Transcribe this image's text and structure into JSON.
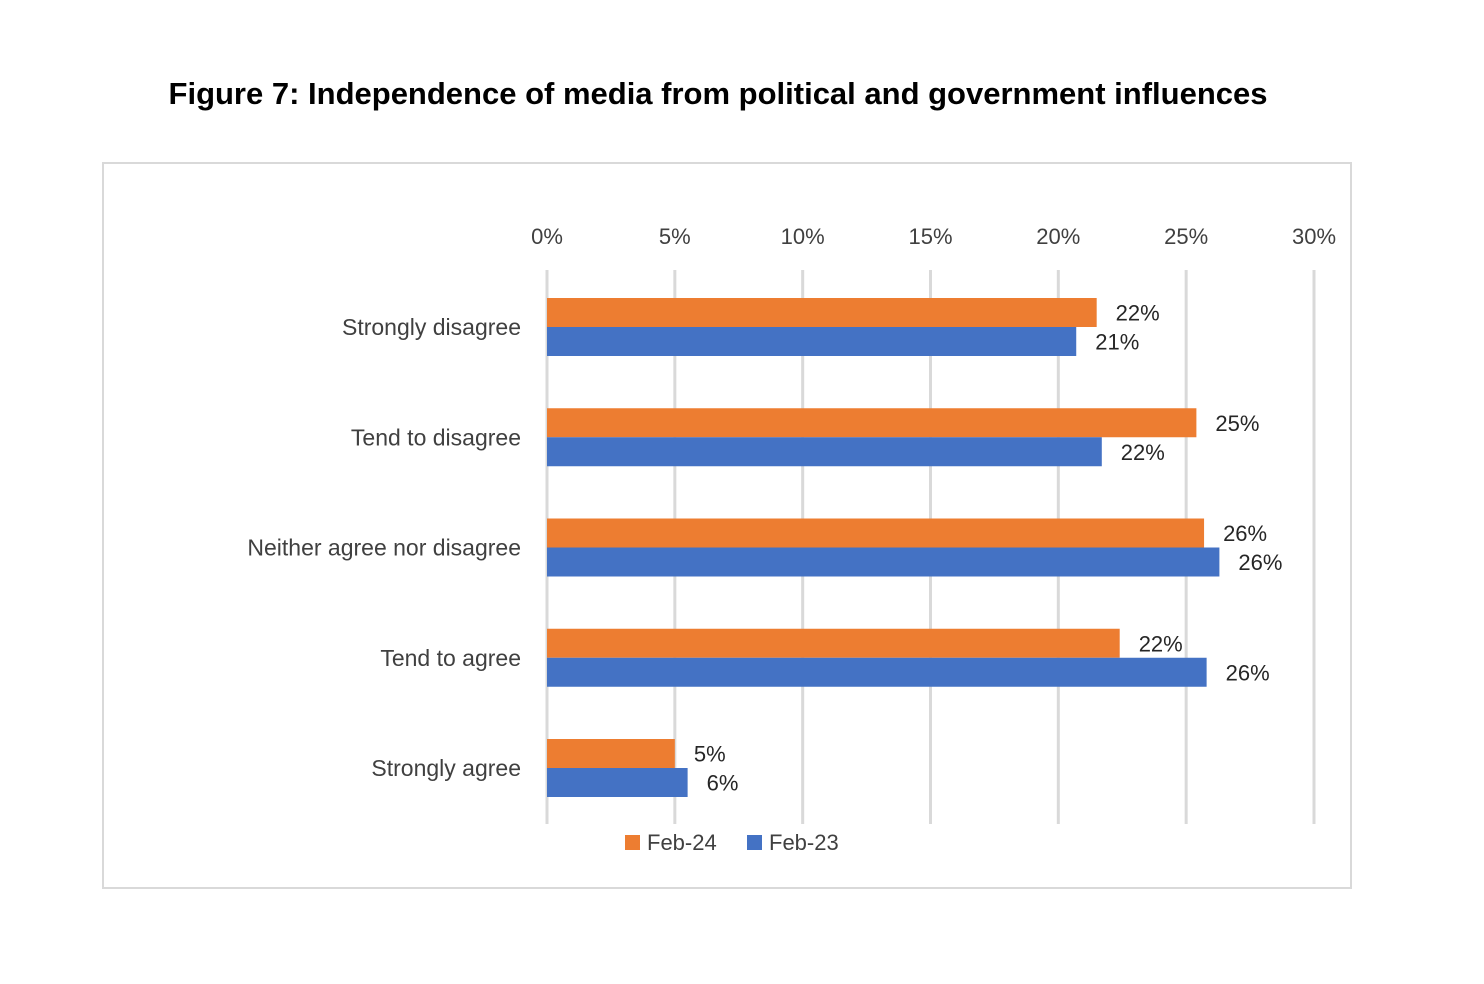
{
  "chart_data": {
    "type": "bar",
    "orientation": "horizontal",
    "title": "Figure 7: Independence of media from political and government influences",
    "categories": [
      "Strongly disagree",
      "Tend to disagree",
      "Neither agree nor disagree",
      "Tend to agree",
      "Strongly agree"
    ],
    "series": [
      {
        "name": "Feb-24",
        "color": "#ed7d31",
        "values": [
          21.5,
          25.4,
          25.7,
          22.4,
          5.0
        ],
        "labels": [
          "22%",
          "25%",
          "26%",
          "22%",
          "5%"
        ]
      },
      {
        "name": "Feb-23",
        "color": "#4472c4",
        "values": [
          20.7,
          21.7,
          26.3,
          25.8,
          5.5
        ],
        "labels": [
          "21%",
          "22%",
          "26%",
          "26%",
          "6%"
        ]
      }
    ],
    "xlim": [
      0,
      30
    ],
    "xticks": [
      0,
      5,
      10,
      15,
      20,
      25,
      30
    ],
    "xtick_labels": [
      "0%",
      "5%",
      "10%",
      "15%",
      "20%",
      "25%",
      "30%"
    ],
    "axis_position": "top",
    "grid": true,
    "legend": "bottom"
  }
}
